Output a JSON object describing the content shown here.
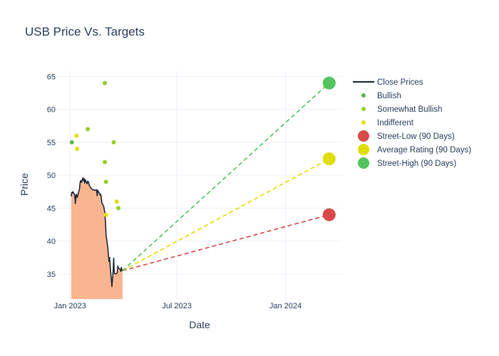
{
  "chart_data": {
    "type": "scatter",
    "title": "USB Price Vs. Targets",
    "xlabel": "Date",
    "ylabel": "Price",
    "x_range": [
      "2022-12-10",
      "2024-04-06"
    ],
    "ylim": [
      31.2,
      65.8
    ],
    "x_ticks": [
      {
        "date": "2023-01-01",
        "label": "Jan 2023"
      },
      {
        "date": "2023-07-01",
        "label": "Jul 2023"
      },
      {
        "date": "2024-01-01",
        "label": "Jan 2024"
      }
    ],
    "y_ticks": [
      35,
      40,
      45,
      50,
      55,
      60,
      65
    ],
    "grid": true,
    "legend_position": "right",
    "close_prices": {
      "name": "Close Prices",
      "line_color": "#1f2a3d",
      "fill_color": "#f9b58f",
      "points": [
        [
          "2023-01-03",
          46.8
        ],
        [
          "2023-01-04",
          47.4
        ],
        [
          "2023-01-05",
          47.3
        ],
        [
          "2023-01-06",
          47.5
        ],
        [
          "2023-01-09",
          47.0
        ],
        [
          "2023-01-10",
          45.7
        ],
        [
          "2023-01-11",
          46.9
        ],
        [
          "2023-01-12",
          47.1
        ],
        [
          "2023-01-13",
          46.6
        ],
        [
          "2023-01-17",
          47.9
        ],
        [
          "2023-01-18",
          48.8
        ],
        [
          "2023-01-19",
          49.2
        ],
        [
          "2023-01-20",
          48.9
        ],
        [
          "2023-01-23",
          49.6
        ],
        [
          "2023-01-24",
          49.1
        ],
        [
          "2023-01-25",
          49.5
        ],
        [
          "2023-01-26",
          48.8
        ],
        [
          "2023-01-27",
          49.3
        ],
        [
          "2023-01-30",
          48.7
        ],
        [
          "2023-01-31",
          49.1
        ],
        [
          "2023-02-01",
          49.0
        ],
        [
          "2023-02-02",
          48.7
        ],
        [
          "2023-02-03",
          48.4
        ],
        [
          "2023-02-06",
          48.0
        ],
        [
          "2023-02-08",
          47.8
        ],
        [
          "2023-02-10",
          47.8
        ],
        [
          "2023-02-13",
          47.7
        ],
        [
          "2023-02-15",
          47.8
        ],
        [
          "2023-02-16",
          46.9
        ],
        [
          "2023-02-17",
          47.7
        ],
        [
          "2023-02-21",
          47.0
        ],
        [
          "2023-02-22",
          47.1
        ],
        [
          "2023-02-23",
          46.6
        ],
        [
          "2023-02-24",
          45.8
        ],
        [
          "2023-02-27",
          45.3
        ],
        [
          "2023-02-28",
          44.8
        ],
        [
          "2023-03-01",
          44.3
        ],
        [
          "2023-03-02",
          43.0
        ],
        [
          "2023-03-03",
          41.0
        ],
        [
          "2023-03-06",
          39.0
        ],
        [
          "2023-03-07",
          38.0
        ],
        [
          "2023-03-08",
          36.9
        ],
        [
          "2023-03-09",
          37.5
        ],
        [
          "2023-03-10",
          36.2
        ],
        [
          "2023-03-13",
          33.1
        ],
        [
          "2023-03-14",
          34.2
        ],
        [
          "2023-03-15",
          35.5
        ],
        [
          "2023-03-16",
          37.4
        ],
        [
          "2023-03-17",
          35.1
        ],
        [
          "2023-03-20",
          35.0
        ],
        [
          "2023-03-21",
          35.1
        ],
        [
          "2023-03-22",
          35.2
        ],
        [
          "2023-03-23",
          36.2
        ],
        [
          "2023-03-24",
          35.9
        ],
        [
          "2023-03-27",
          35.7
        ],
        [
          "2023-03-28",
          35.4
        ],
        [
          "2023-03-29",
          36.0
        ],
        [
          "2023-03-30",
          35.6
        ],
        [
          "2023-03-31",
          35.5
        ]
      ]
    },
    "series": [
      {
        "name": "Bullish",
        "color": "#5ab94d",
        "points": [
          [
            "2023-01-04",
            55
          ]
        ]
      },
      {
        "name": "Somewhat Bullish",
        "color": "#95cf2b",
        "points": [
          [
            "2023-01-31",
            57
          ],
          [
            "2023-03-01",
            64
          ],
          [
            "2023-03-01",
            52
          ],
          [
            "2023-03-03",
            49
          ],
          [
            "2023-03-16",
            55
          ],
          [
            "2023-03-24",
            45
          ]
        ]
      },
      {
        "name": "Indifferent",
        "color": "#e1df10",
        "points": [
          [
            "2023-01-12",
            56
          ],
          [
            "2023-01-13",
            54
          ],
          [
            "2023-03-03",
            44
          ],
          [
            "2023-03-21",
            46
          ]
        ]
      }
    ],
    "targets": {
      "start": [
        "2023-03-31",
        35.5
      ],
      "end_date": "2024-03-15",
      "items": [
        {
          "name": "Street-Low (90 Days)",
          "value": 44,
          "color": "#d84a4a"
        },
        {
          "name": "Average Rating (90 Days)",
          "value": 52.5,
          "color": "#dfdd05"
        },
        {
          "name": "Street-High (90 Days)",
          "value": 64,
          "color": "#54c35f"
        }
      ]
    }
  }
}
